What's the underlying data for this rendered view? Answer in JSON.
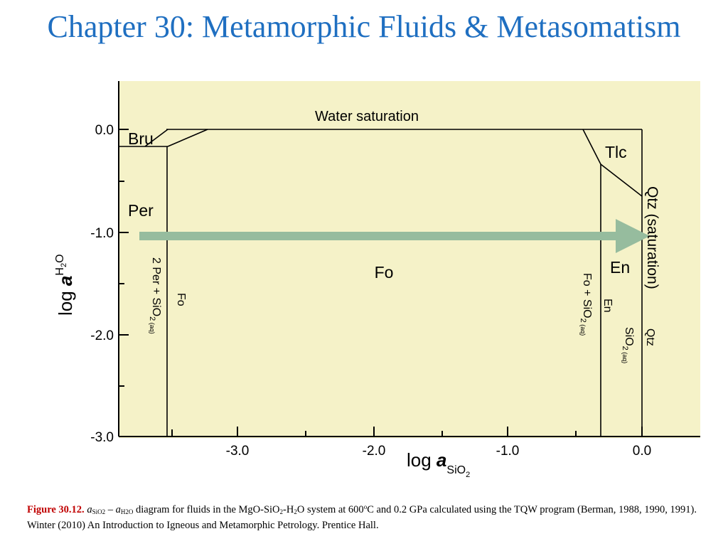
{
  "title": "Chapter 30: Metamorphic Fluids & Metasomatism",
  "diagram": {
    "background_color": "#f5f2c8",
    "arrow_color": "#96bc9e",
    "x_axis": {
      "label_main": "log ",
      "label_var": "a",
      "label_sub": "SiO",
      "label_sub2": "2",
      "ticks": [
        "-3.0",
        "-2.0",
        "-1.0",
        "0.0"
      ]
    },
    "y_axis": {
      "label_main": "log ",
      "label_var": "a",
      "label_sub": "H",
      "label_sub2": "2",
      "label_sub3": "O",
      "ticks": [
        "0.0",
        "-1.0",
        "-2.0",
        "-3.0"
      ]
    },
    "labels": {
      "water_saturation": "Water saturation",
      "bru": "Bru",
      "tlc": "Tlc",
      "per": "Per",
      "fo": "Fo",
      "en": "En",
      "qtz_saturation": "Qtz (saturation)",
      "per_fo_left": "2 Per + SiO",
      "per_fo_left_sub": "2",
      "per_fo_left_aq": " (aq)",
      "per_fo_right": "Fo",
      "fo_en_left": "Fo + SiO",
      "fo_en_left_sub": "2",
      "fo_en_left_aq": " (aq)",
      "fo_en_right": "En",
      "en_qtz_left": "SiO",
      "en_qtz_left_sub": "2",
      "en_qtz_left_aq": " (aq)",
      "en_qtz_right": "Qtz"
    }
  },
  "caption": {
    "figure_label": "Figure 30.12.",
    "a1": "a",
    "a1_sub": "SiO2",
    "dash": " – ",
    "a2": "a",
    "a2_sub": "H2O",
    "text1": " diagram for fluids in the MgO-SiO",
    "sub1": "2",
    "text2": "-H",
    "sub2": "2",
    "text3": "O system at 600",
    "sup1": "o",
    "text4": "C and 0.2 GPa calculated using the TQW program (Berman, 1988, 1990, 1991). Winter (2010) An Introduction to Igneous and Metamorphic Petrology. Prentice Hall."
  }
}
